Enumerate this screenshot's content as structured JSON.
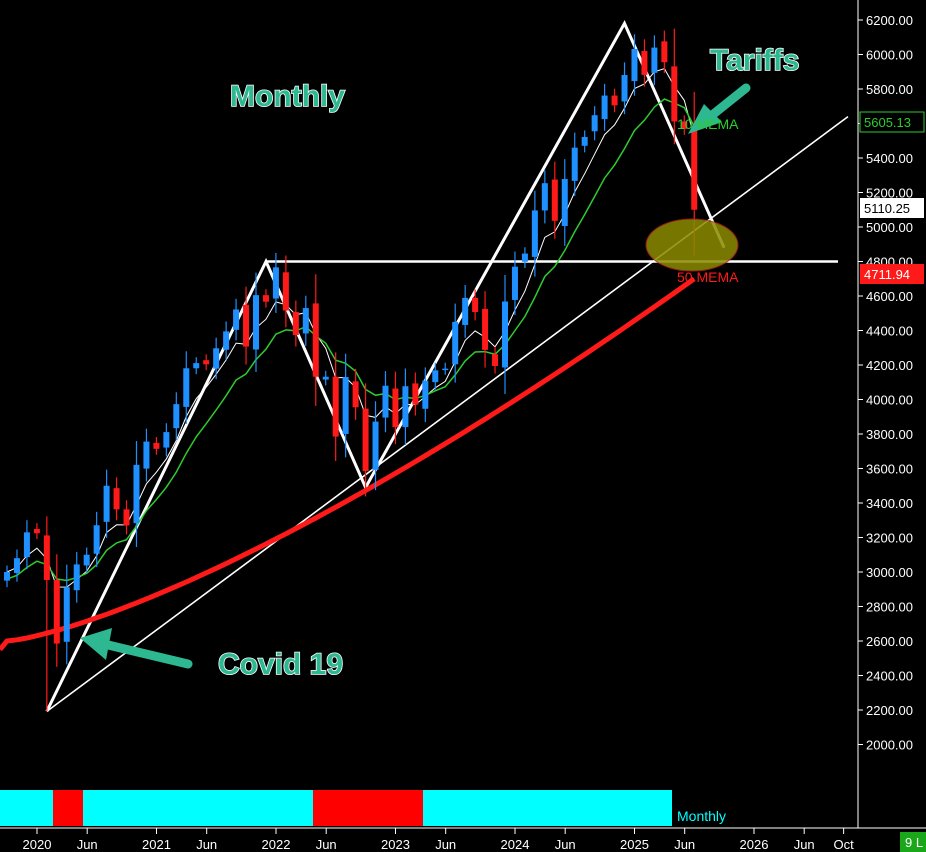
{
  "chart_data": {
    "type": "candlestick",
    "timeframe": "Monthly",
    "y_axis": {
      "min": 1800,
      "max": 6300,
      "position": "right",
      "ticks": [
        "6200.00",
        "6000.00",
        "5800.00",
        "5600.00",
        "5400.00",
        "5200.00",
        "5000.00",
        "4800.00",
        "4600.00",
        "4400.00",
        "4200.00",
        "4000.00",
        "3800.00",
        "3600.00",
        "3400.00",
        "3200.00",
        "3000.00",
        "2800.00",
        "2600.00",
        "2400.00",
        "2200.00",
        "2000.00"
      ]
    },
    "x_axis": {
      "ticks": [
        {
          "label": "2020",
          "t": 2020.0
        },
        {
          "label": "Jun",
          "t": 2020.42
        },
        {
          "label": "2021",
          "t": 2021.0
        },
        {
          "label": "Jun",
          "t": 2021.42
        },
        {
          "label": "2022",
          "t": 2022.0
        },
        {
          "label": "Jun",
          "t": 2022.42
        },
        {
          "label": "2023",
          "t": 2023.0
        },
        {
          "label": "Jun",
          "t": 2023.42
        },
        {
          "label": "2024",
          "t": 2024.0
        },
        {
          "label": "Jun",
          "t": 2024.42
        },
        {
          "label": "2025",
          "t": 2025.0
        },
        {
          "label": "Jun",
          "t": 2025.42
        },
        {
          "label": "2026",
          "t": 2026.0
        },
        {
          "label": "Jun",
          "t": 2026.42
        },
        {
          "label": "Oct",
          "t": 2026.75
        }
      ]
    },
    "ohlc_close": [
      3000,
      3080,
      3230,
      3225,
      2954,
      2585,
      2912,
      3044,
      3100,
      3271,
      3500,
      3363,
      3270,
      3621,
      3756,
      3714,
      3811,
      3973,
      4181,
      4211,
      4204,
      4297,
      4395,
      4522,
      4307,
      4605,
      4567,
      4766,
      4516,
      4374,
      4530,
      4132,
      4132,
      3785,
      4130,
      3955,
      3585,
      3872,
      4080,
      3840,
      4077,
      3970,
      4109,
      4169,
      4179,
      4450,
      4589,
      4507,
      4288,
      4194,
      4568,
      4770,
      4846,
      5096,
      5254,
      5036,
      5278,
      5460,
      5522,
      5648,
      5762,
      5705,
      5881,
      6032,
      5882,
      6040,
      5955,
      5612,
      5569,
      5100
    ],
    "current_price": "5110.25",
    "mema10": {
      "label": "10 MEMA",
      "value": "5605.13"
    },
    "mema50": {
      "label": "50 MEMA",
      "value": "4711.94"
    },
    "annotations": {
      "title": "Monthly",
      "tariffs": "Tariffs",
      "covid": "Covid 19"
    },
    "indicator_label": "Monthly",
    "corner_label": "9 L",
    "colors": {
      "up": "#1e90ff",
      "down": "#ff1a1a",
      "mema10": "#2ecc2e",
      "mema50": "#ff1a1a",
      "regime_up": "#00ffff",
      "regime_down": "#ff0000",
      "annotation": "#2db891",
      "ellipse": "#8b8b00"
    }
  }
}
